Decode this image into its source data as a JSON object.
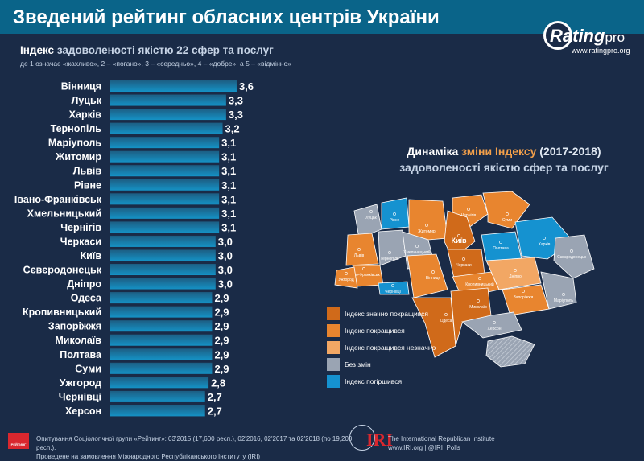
{
  "header": {
    "title": "Зведений рейтинг обласних центрів України",
    "logo_main": "Rating",
    "logo_pro": "pro",
    "logo_url": "www.ratingpro.org"
  },
  "subtitle": {
    "lead": "Індекс",
    "rest": " задоволеності якістю 22 сфер та послуг",
    "note": "де 1 означає «жахливо», 2 – «погано», 3 – «середньо», 4 – «добре», а 5 – «відмінно»"
  },
  "chart_data": {
    "type": "bar",
    "orientation": "horizontal",
    "categories": [
      "Вінниця",
      "Луцьк",
      "Харків",
      "Тернопіль",
      "Маріуполь",
      "Житомир",
      "Львів",
      "Рівне",
      "Івано-Франківськ",
      "Хмельницький",
      "Чернігів",
      "Черкаси",
      "Київ",
      "Сєвєродонецьк",
      "Дніпро",
      "Одеса",
      "Кропивницький",
      "Запоріжжя",
      "Миколаїв",
      "Полтава",
      "Суми",
      "Ужгород",
      "Чернівці",
      "Херсон"
    ],
    "values": [
      3.6,
      3.3,
      3.3,
      3.2,
      3.1,
      3.1,
      3.1,
      3.1,
      3.1,
      3.1,
      3.1,
      3.0,
      3.0,
      3.0,
      3.0,
      2.9,
      2.9,
      2.9,
      2.9,
      2.9,
      2.9,
      2.8,
      2.7,
      2.7
    ],
    "labels": [
      "3,6",
      "3,3",
      "3,3",
      "3,2",
      "3,1",
      "3,1",
      "3,1",
      "3,1",
      "3,1",
      "3,1",
      "3,1",
      "3,0",
      "3,0",
      "3,0",
      "3,0",
      "2,9",
      "2,9",
      "2,9",
      "2,9",
      "2,9",
      "2,9",
      "2,8",
      "2,7",
      "2,7"
    ],
    "colors": {
      "bar_top": "#1d5e83",
      "bar_bottom": "#1592c5"
    }
  },
  "map": {
    "title_part1": "Динаміка",
    "title_part2": " зміни Індексу",
    "title_part3": " (2017-2018)",
    "title_line2": "задоволеності якістю сфер та послуг",
    "regions": [
      {
        "name": "Луцьк",
        "cat": 3
      },
      {
        "name": "Рівне",
        "cat": 4
      },
      {
        "name": "Житомир",
        "cat": 1
      },
      {
        "name": "Чернігів",
        "cat": 1
      },
      {
        "name": "Суми",
        "cat": 1
      },
      {
        "name": "Київ",
        "cat": 0
      },
      {
        "name": "Львів",
        "cat": 1
      },
      {
        "name": "Тернопіль",
        "cat": 3
      },
      {
        "name": "Хмельницький",
        "cat": 3
      },
      {
        "name": "Івано-Франківськ",
        "cat": 1
      },
      {
        "name": "Ужгород",
        "cat": 1
      },
      {
        "name": "Чернівці",
        "cat": 4
      },
      {
        "name": "Вінниця",
        "cat": 1
      },
      {
        "name": "Черкаси",
        "cat": 0
      },
      {
        "name": "Полтава",
        "cat": 4
      },
      {
        "name": "Харків",
        "cat": 4
      },
      {
        "name": "Сєвєродонецьк",
        "cat": 3
      },
      {
        "name": "Кропивницький",
        "cat": 1
      },
      {
        "name": "Дніпро",
        "cat": 2
      },
      {
        "name": "Одеса",
        "cat": 0
      },
      {
        "name": "Миколаїв",
        "cat": 0
      },
      {
        "name": "Запоріжжя",
        "cat": 1
      },
      {
        "name": "Маріуполь",
        "cat": 3
      },
      {
        "name": "Херсон",
        "cat": 3
      }
    ],
    "colors": {
      "no_change": "#9aa4b3"
    }
  },
  "legend": [
    {
      "label": "Індекс значно покращився",
      "color": "#d06a1a"
    },
    {
      "label": "Індекс покращився",
      "color": "#e8852f"
    },
    {
      "label": "Індекс покращився незначно",
      "color": "#f2a764"
    },
    {
      "label": "Без змін",
      "color": "#9aa4b3"
    },
    {
      "label": "Індекс погіршився",
      "color": "#1592d0"
    }
  ],
  "footer": {
    "badge": "РЕЙТИНГ",
    "line1": "Опитування Соціологічної групи «Рейтинг»: 03'2015 (17,600 респ.), 02'2016, 02'2017 та 02'2018 (по 19,200 респ.).",
    "line2": "Проведене на замовлення Міжнародного Республіканського Інституту (IRI)",
    "iri_mark": "IRI",
    "iri_line1": "The International Republican Institute",
    "iri_line2": "www.IRI.org | @IRI_Polls"
  }
}
